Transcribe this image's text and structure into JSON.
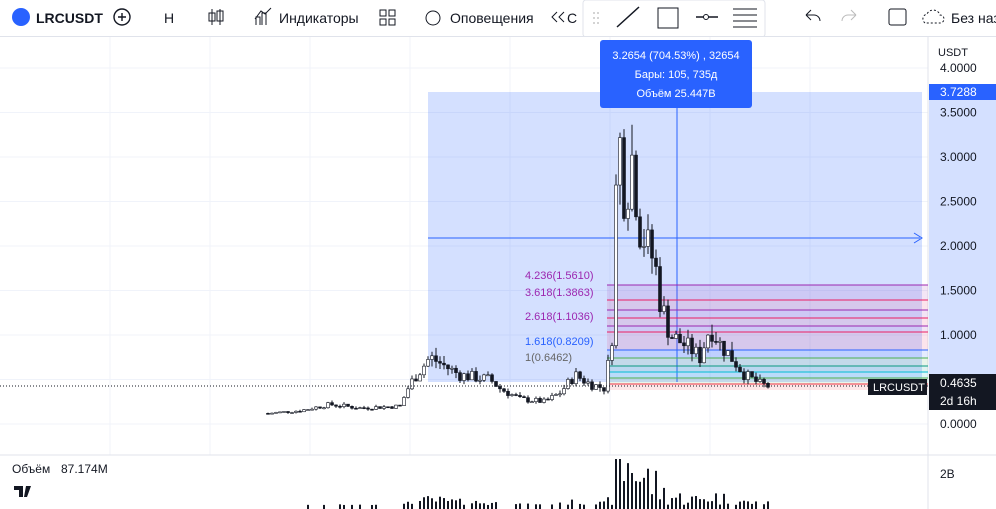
{
  "toolbar": {
    "symbol": "LRCUSDT",
    "interval": "H",
    "indicators": "Индикаторы",
    "alerts": "Оповещения",
    "truncated": "С",
    "layout_name": "Без наз"
  },
  "price_axis": {
    "currency": "USDT",
    "ticks": [
      "4.0000",
      "3.5000",
      "3.0000",
      "2.5000",
      "2.0000",
      "1.5000",
      "1.0000",
      "0.0000"
    ],
    "range_label": "3.7288",
    "last_price": "0.4635",
    "countdown": "2d 16h",
    "symbol_tag": "LRCUSDT"
  },
  "tooltip": {
    "line1": "3.2654 (704.53%) , 32654",
    "line2": "Бары: 105, 735д",
    "line3": "Объём 25.447B"
  },
  "fib_labels": [
    "4.236(1.5610)",
    "3.618(1.3863)",
    "2.618(1.1036)",
    "1.618(0.8209)",
    "1(0.6462)"
  ],
  "volume": {
    "label": "Объём",
    "value": "87.174M",
    "axis_tick": "2B"
  }
}
